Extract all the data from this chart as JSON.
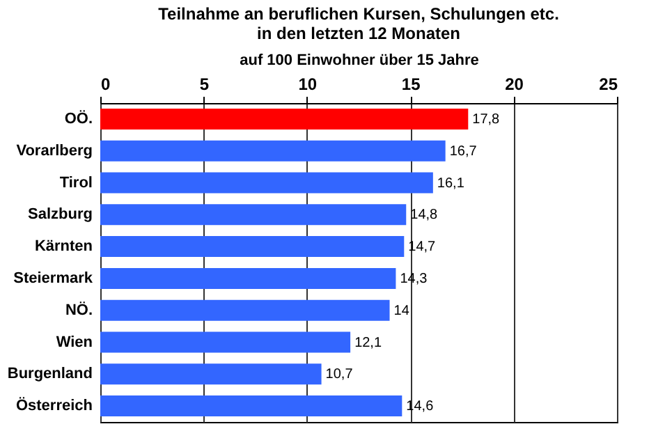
{
  "chart_data": {
    "type": "bar",
    "orientation": "horizontal",
    "title": "Teilnahme an beruflichen Kursen, Schulungen etc.\nin den letzten 12 Monaten",
    "xlabel": "auf 100  Einwohner über 15 Jahre",
    "categories": [
      "OÖ.",
      "Vorarlberg",
      "Tirol",
      "Salzburg",
      "Kärnten",
      "Steiermark",
      "NÖ.",
      "Wien",
      "Burgenland",
      "Österreich"
    ],
    "values": [
      17.8,
      16.7,
      16.1,
      14.8,
      14.7,
      14.3,
      14,
      12.1,
      10.7,
      14.6
    ],
    "value_labels": [
      "17,8",
      "16,7",
      "16,1",
      "14,8",
      "14,7",
      "14,3",
      "14",
      "12,1",
      "10,7",
      "14,6"
    ],
    "colors": [
      "#ff0000",
      "#3366ff",
      "#3366ff",
      "#3366ff",
      "#3366ff",
      "#3366ff",
      "#3366ff",
      "#3366ff",
      "#3366ff",
      "#3366ff"
    ],
    "xlim": [
      0,
      25
    ],
    "xticks": [
      0,
      5,
      10,
      15,
      20,
      25
    ],
    "grid": "x"
  }
}
